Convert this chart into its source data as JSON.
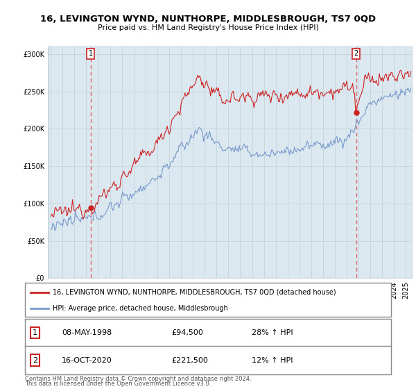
{
  "title_line1": "16, LEVINGTON WYND, NUNTHORPE, MIDDLESBROUGH, TS7 0QD",
  "title_line2": "Price paid vs. HM Land Registry's House Price Index (HPI)",
  "ylabel_ticks": [
    "£0",
    "£50K",
    "£100K",
    "£150K",
    "£200K",
    "£250K",
    "£300K"
  ],
  "ytick_values": [
    0,
    50000,
    100000,
    150000,
    200000,
    250000,
    300000
  ],
  "ylim": [
    0,
    310000
  ],
  "xlim_start": 1994.75,
  "xlim_end": 2025.5,
  "line1_color": "#cc2222",
  "line2_color": "#7799cc",
  "vline_color": "#dd6666",
  "bg_color": "#dce8f0",
  "purchase1_year": 1998.36,
  "purchase1_price": 94500,
  "purchase1_date": "08-MAY-1998",
  "purchase1_pct": "28%",
  "purchase2_year": 2020.79,
  "purchase2_price": 221500,
  "purchase2_date": "16-OCT-2020",
  "purchase2_pct": "12%",
  "legend_label1": "16, LEVINGTON WYND, NUNTHORPE, MIDDLESBROUGH, TS7 0QD (detached house)",
  "legend_label2": "HPI: Average price, detached house, Middlesbrough",
  "footer1": "Contains HM Land Registry data © Crown copyright and database right 2024.",
  "footer2": "This data is licensed under the Open Government Licence v3.0.",
  "grid_color": "#c0cfd8"
}
